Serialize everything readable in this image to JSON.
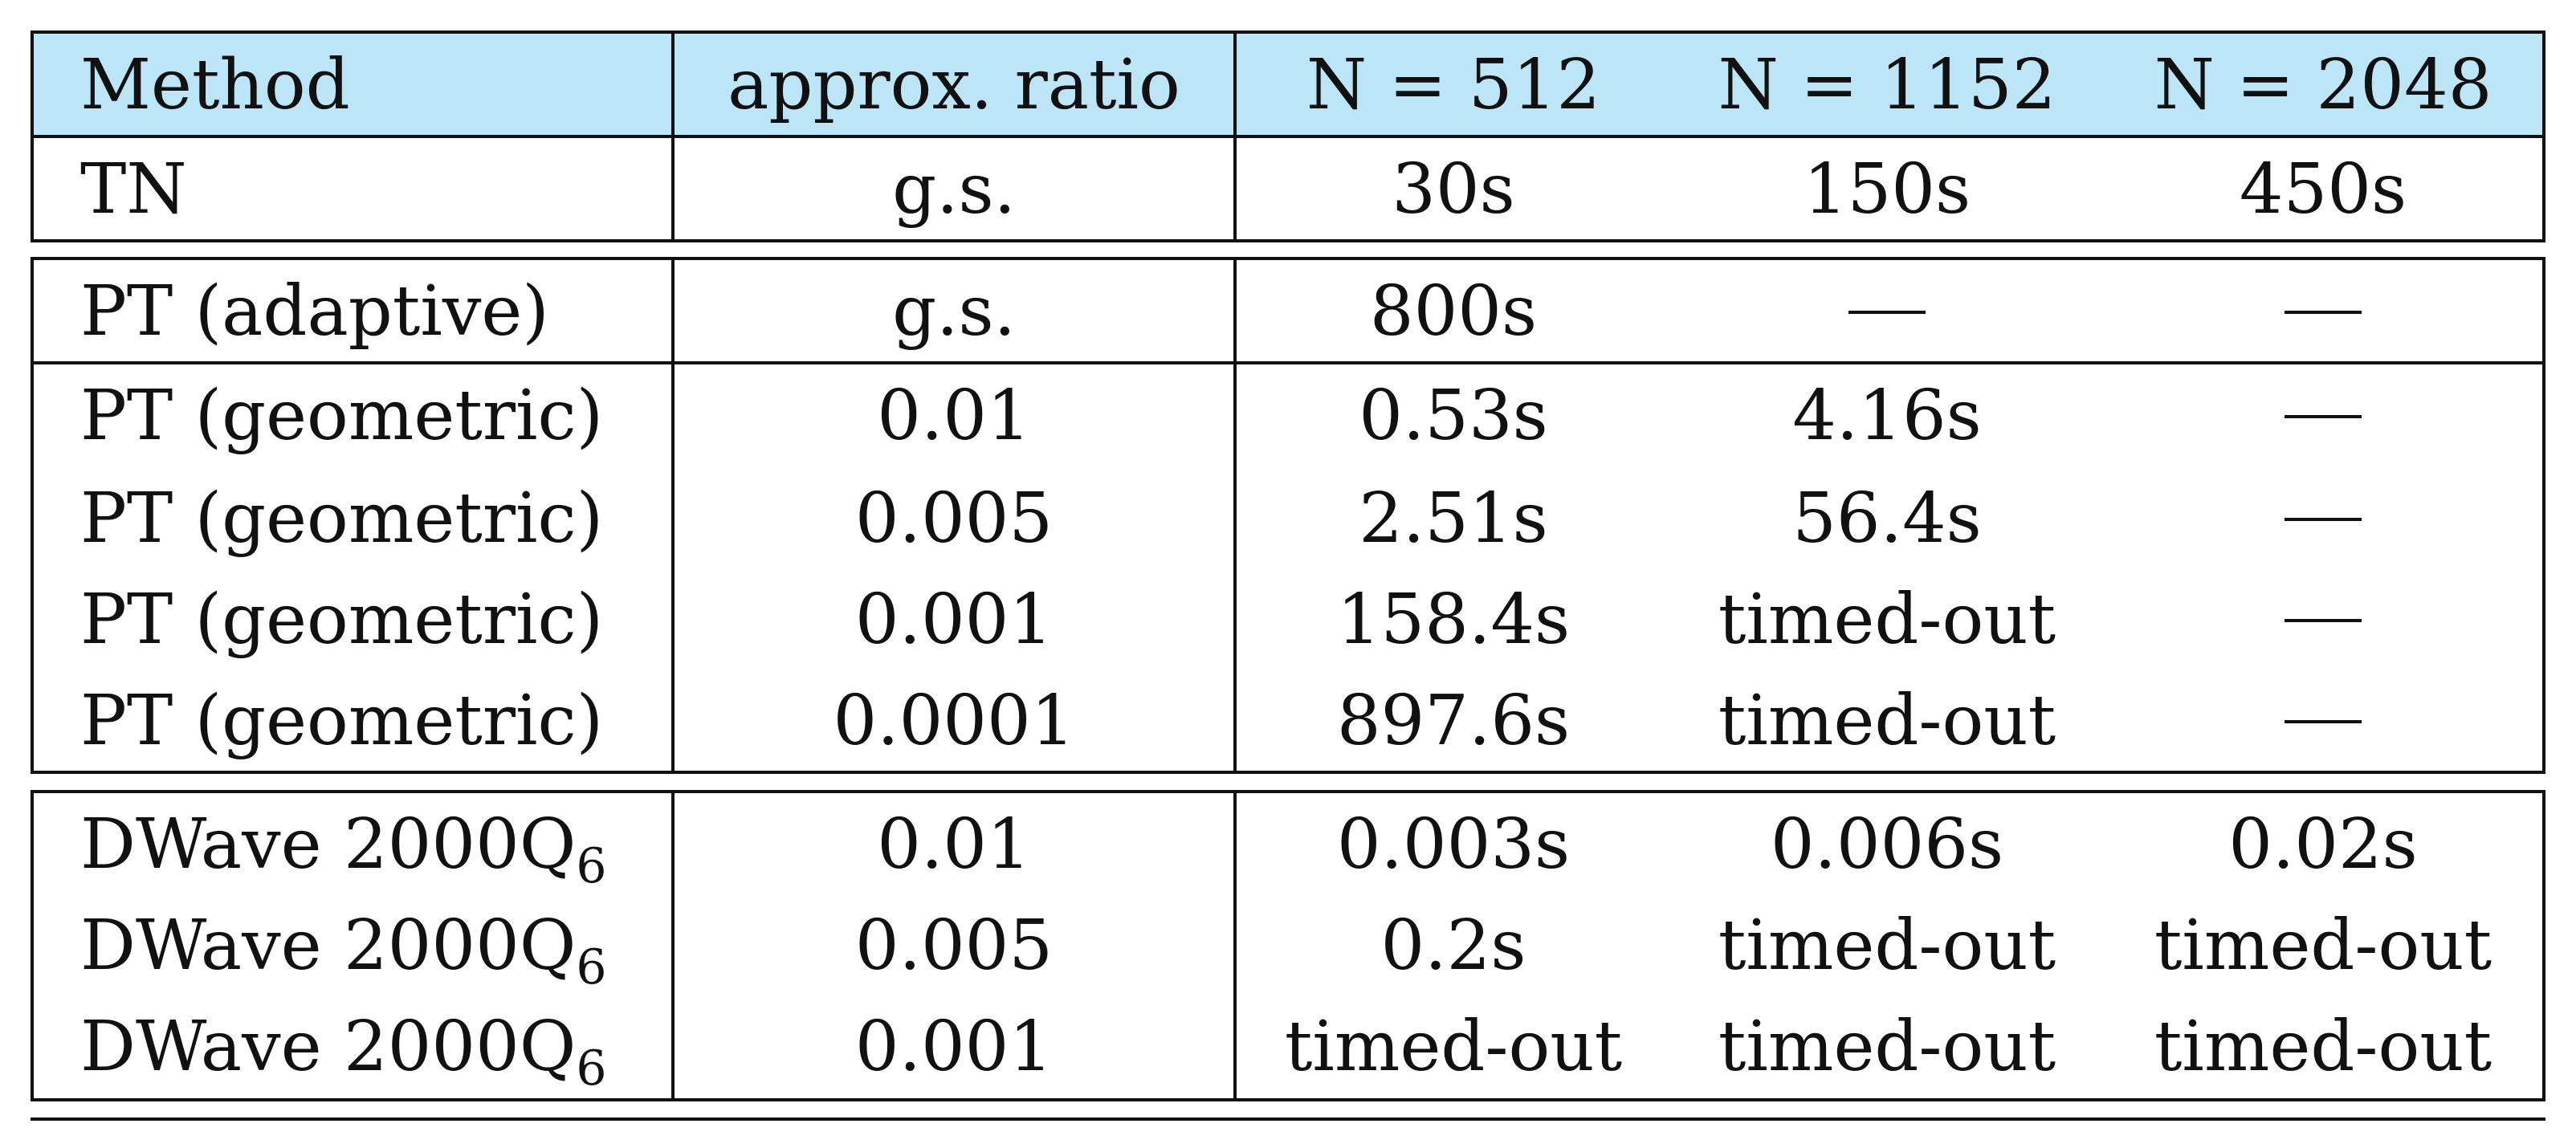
{
  "table": {
    "header": {
      "method": "Method",
      "ratio": "approx. ratio",
      "n512": "N = 512",
      "n1152": "N = 1152",
      "n2048": "N = 2048"
    },
    "dash_symbol": "—",
    "rows_tn": [
      {
        "method": "TN",
        "ratio": "g.s.",
        "n512": "30s",
        "n1152": "150s",
        "n2048": "450s"
      }
    ],
    "rows_pt_adaptive": [
      {
        "method": "PT (adaptive)",
        "ratio": "g.s.",
        "n512": "800s",
        "n1152": "—",
        "n2048": "—"
      }
    ],
    "rows_pt_geometric": [
      {
        "method": "PT (geometric)",
        "ratio": "0.01",
        "n512": "0.53s",
        "n1152": "4.16s",
        "n2048": "—"
      },
      {
        "method": "PT (geometric)",
        "ratio": "0.005",
        "n512": "2.51s",
        "n1152": "56.4s",
        "n2048": "—"
      },
      {
        "method": "PT (geometric)",
        "ratio": "0.001",
        "n512": "158.4s",
        "n1152": "timed-out",
        "n2048": "—"
      },
      {
        "method": "PT (geometric)",
        "ratio": "0.0001",
        "n512": "897.6s",
        "n1152": "timed-out",
        "n2048": "—"
      }
    ],
    "rows_dwave": [
      {
        "method": "DWave 2000Q",
        "method_sub": "6",
        "ratio": "0.01",
        "n512": "0.003s",
        "n1152": "0.006s",
        "n2048": "0.02s"
      },
      {
        "method": "DWave 2000Q",
        "method_sub": "6",
        "ratio": "0.005",
        "n512": "0.2s",
        "n1152": "timed-out",
        "n2048": "timed-out"
      },
      {
        "method": "DWave 2000Q",
        "method_sub": "6",
        "ratio": "0.001",
        "n512": "timed-out",
        "n1152": "timed-out",
        "n2048": "timed-out"
      }
    ],
    "colors": {
      "header_bg": "#bde5f8",
      "rule": "#111111",
      "text": "#111111"
    }
  }
}
